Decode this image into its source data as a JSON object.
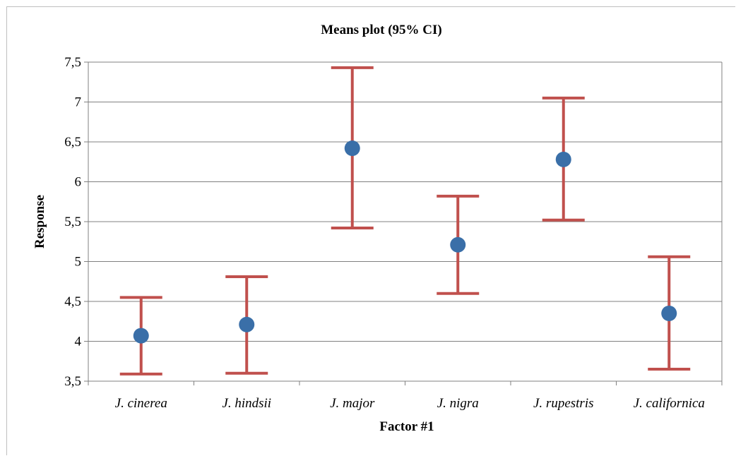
{
  "chart_data": {
    "type": "scatter",
    "title": "Means plot (95% CI)",
    "xlabel": "Factor #1",
    "ylabel": "Response",
    "categories": [
      "J. cinerea",
      "J. hindsii",
      "J. major",
      "J. nigra",
      "J. rupestris",
      "J. californica"
    ],
    "means": [
      4.07,
      4.21,
      6.42,
      5.21,
      6.28,
      4.35
    ],
    "ci_lower": [
      3.59,
      3.6,
      5.42,
      4.6,
      5.52,
      3.65
    ],
    "ci_upper": [
      4.55,
      4.81,
      7.43,
      5.82,
      7.05,
      5.06
    ],
    "ylim": [
      3.5,
      7.5
    ],
    "yticks": [
      "3,5",
      "4",
      "4,5",
      "5",
      "5,5",
      "6",
      "6,5",
      "7",
      "7,5"
    ],
    "ytick_values": [
      3.5,
      4,
      4.5,
      5,
      5.5,
      6,
      6.5,
      7,
      7.5
    ],
    "grid": true,
    "legend": "none",
    "colors": {
      "marker": "#3a6fa8",
      "error_bar": "#c0504d",
      "grid": "#808080",
      "axis": "#808080"
    }
  }
}
